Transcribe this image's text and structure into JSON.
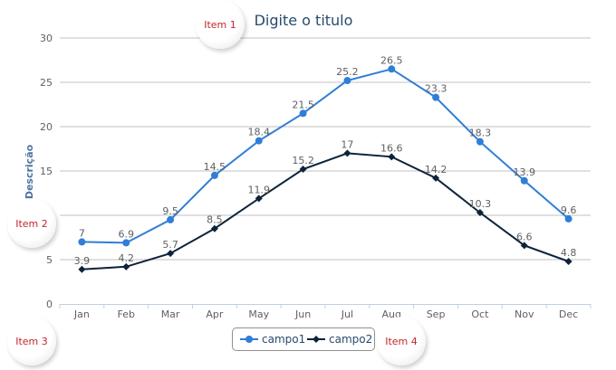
{
  "chart_data": {
    "type": "line",
    "title": "Digite o titulo",
    "xlabel": "",
    "ylabel": "Descrição",
    "categories": [
      "Jan",
      "Feb",
      "Mar",
      "Apr",
      "May",
      "Jun",
      "Jul",
      "Aug",
      "Sep",
      "Oct",
      "Nov",
      "Dec"
    ],
    "ylim": [
      0,
      30
    ],
    "yticks": [
      0,
      5,
      10,
      15,
      20,
      25,
      30
    ],
    "grid": true,
    "legend_position": "bottom-center",
    "series": [
      {
        "name": "campo1",
        "color": "#2f7ed8",
        "marker": "circle",
        "values": [
          7,
          6.9,
          9.5,
          14.5,
          18.4,
          21.5,
          25.2,
          26.5,
          23.3,
          18.3,
          13.9,
          9.6
        ]
      },
      {
        "name": "campo2",
        "color": "#0d233a",
        "marker": "diamond",
        "values": [
          3.9,
          4.2,
          5.7,
          8.5,
          11.9,
          15.2,
          17,
          16.6,
          14.2,
          10.3,
          6.6,
          4.8
        ]
      }
    ]
  },
  "bubbles": [
    "Item 1",
    "Item 2",
    "Item 3",
    "Item 4"
  ]
}
